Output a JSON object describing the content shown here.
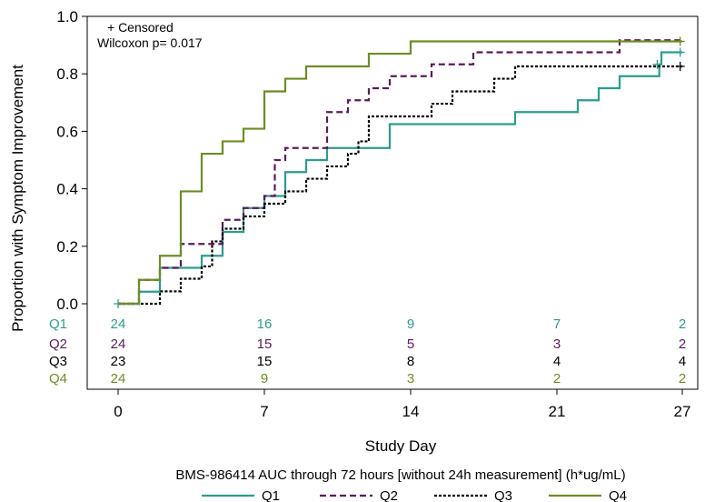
{
  "chart_data": {
    "type": "line",
    "subtype": "kaplan-meier-step",
    "xlabel": "Study Day",
    "ylabel": "Proportion with Symptom Improvement",
    "xlim": [
      0,
      27
    ],
    "ylim": [
      0,
      1.0
    ],
    "x_ticks": [
      0,
      7,
      14,
      21,
      27
    ],
    "y_ticks": [
      "0.0",
      "0.2",
      "0.4",
      "0.6",
      "0.8",
      "1.0"
    ],
    "grid": false,
    "annotations": {
      "censored": "+ Censored",
      "pvalue": "Wilcoxon p= 0.017"
    },
    "legend": {
      "title": "BMS-986414 AUC through 72 hours [without 24h measurement] (h*ug/mL)",
      "placement": "bottom"
    },
    "series": [
      {
        "name": "Q1",
        "color": "#2a9d8f",
        "dash": "solid",
        "steps": [
          [
            0,
            0
          ],
          [
            1,
            0.042
          ],
          [
            2,
            0.125
          ],
          [
            4,
            0.167
          ],
          [
            5,
            0.25
          ],
          [
            6,
            0.333
          ],
          [
            7,
            0.375
          ],
          [
            8,
            0.458
          ],
          [
            9,
            0.5
          ],
          [
            10,
            0.542
          ],
          [
            13,
            0.625
          ],
          [
            19,
            0.667
          ],
          [
            22,
            0.708
          ],
          [
            23,
            0.75
          ],
          [
            24,
            0.792
          ],
          [
            25.9,
            0.833
          ],
          [
            26,
            0.875
          ]
        ],
        "censored": [
          [
            0,
            0
          ],
          [
            25.8,
            0.833
          ],
          [
            26.9,
            0.875
          ]
        ],
        "at_risk": [
          24,
          16,
          9,
          7,
          2
        ]
      },
      {
        "name": "Q2",
        "color": "#5b1a5e",
        "dash": "dashed",
        "steps": [
          [
            0,
            0
          ],
          [
            1,
            0.083
          ],
          [
            2,
            0.125
          ],
          [
            3,
            0.208
          ],
          [
            4,
            0.208
          ],
          [
            5,
            0.292
          ],
          [
            6,
            0.333
          ],
          [
            7,
            0.375
          ],
          [
            7.5,
            0.5
          ],
          [
            8,
            0.542
          ],
          [
            10,
            0.667
          ],
          [
            11,
            0.708
          ],
          [
            12,
            0.75
          ],
          [
            13,
            0.792
          ],
          [
            15,
            0.833
          ],
          [
            17,
            0.875
          ],
          [
            24,
            0.917
          ]
        ],
        "censored": [],
        "at_risk": [
          24,
          15,
          5,
          3,
          2
        ]
      },
      {
        "name": "Q3",
        "color": "#000000",
        "dash": "dotted",
        "steps": [
          [
            0,
            0
          ],
          [
            2,
            0.043
          ],
          [
            3,
            0.087
          ],
          [
            4,
            0.13
          ],
          [
            4.5,
            0.217
          ],
          [
            5,
            0.261
          ],
          [
            6,
            0.304
          ],
          [
            7,
            0.348
          ],
          [
            8,
            0.391
          ],
          [
            9,
            0.435
          ],
          [
            10,
            0.478
          ],
          [
            11,
            0.522
          ],
          [
            11.5,
            0.565
          ],
          [
            12,
            0.652
          ],
          [
            15,
            0.696
          ],
          [
            16,
            0.739
          ],
          [
            18,
            0.783
          ],
          [
            19,
            0.826
          ]
        ],
        "censored": [
          [
            26.9,
            0.826
          ]
        ],
        "at_risk": [
          23,
          15,
          8,
          4,
          4
        ]
      },
      {
        "name": "Q4",
        "color": "#6b8e23",
        "dash": "solid",
        "steps": [
          [
            0,
            0
          ],
          [
            1,
            0.083
          ],
          [
            2,
            0.167
          ],
          [
            3,
            0.391
          ],
          [
            4,
            0.522
          ],
          [
            5,
            0.565
          ],
          [
            6,
            0.609
          ],
          [
            7,
            0.739
          ],
          [
            8,
            0.783
          ],
          [
            9,
            0.826
          ],
          [
            12,
            0.87
          ],
          [
            14,
            0.913
          ]
        ],
        "censored": [
          [
            26.9,
            0.913
          ]
        ],
        "at_risk": [
          24,
          9,
          3,
          2,
          2
        ]
      }
    ]
  }
}
